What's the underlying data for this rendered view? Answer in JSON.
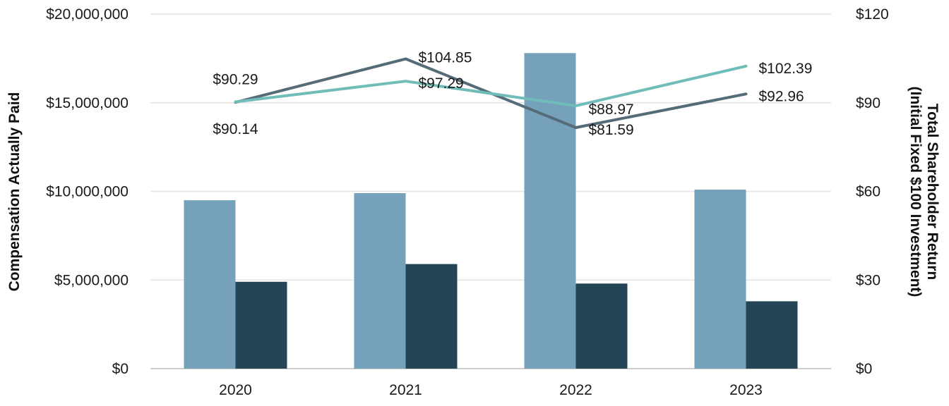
{
  "chart_data": {
    "type": "bar",
    "categories": [
      "2020",
      "2021",
      "2022",
      "2023"
    ],
    "left_axis": {
      "label": "Compensation Actually Paid",
      "range": [
        0,
        20000000
      ],
      "ticks": [
        0,
        5000000,
        10000000,
        15000000,
        20000000
      ],
      "tick_labels": [
        "$0",
        "$5,000,000",
        "$10,000,000",
        "$15,000,000",
        "$20,000,000"
      ]
    },
    "right_axis": {
      "label_line1": "Total Shareholder Return",
      "label_line2": "(Initial Fixed $100 Investment)",
      "range": [
        0,
        120
      ],
      "ticks": [
        0,
        30,
        60,
        90,
        120
      ],
      "tick_labels": [
        "$0",
        "$30",
        "$60",
        "$90",
        "$120"
      ]
    },
    "bar_series": [
      {
        "color": "#76a1ba",
        "values": [
          9500000,
          9900000,
          17800000,
          10100000
        ]
      },
      {
        "color": "#244556",
        "values": [
          4900000,
          5900000,
          4800000,
          3800000
        ]
      }
    ],
    "line_series": [
      {
        "color": "#556b78",
        "values": [
          90.14,
          104.85,
          81.59,
          92.96
        ],
        "labels": [
          "$90.14",
          "$104.85",
          "$81.59",
          "$92.96"
        ]
      },
      {
        "color": "#6fbcb8",
        "values": [
          90.29,
          97.29,
          88.97,
          102.39
        ],
        "labels": [
          "$90.29",
          "$97.29",
          "$88.97",
          "$102.39"
        ]
      }
    ],
    "grid": true,
    "legend": "none"
  }
}
